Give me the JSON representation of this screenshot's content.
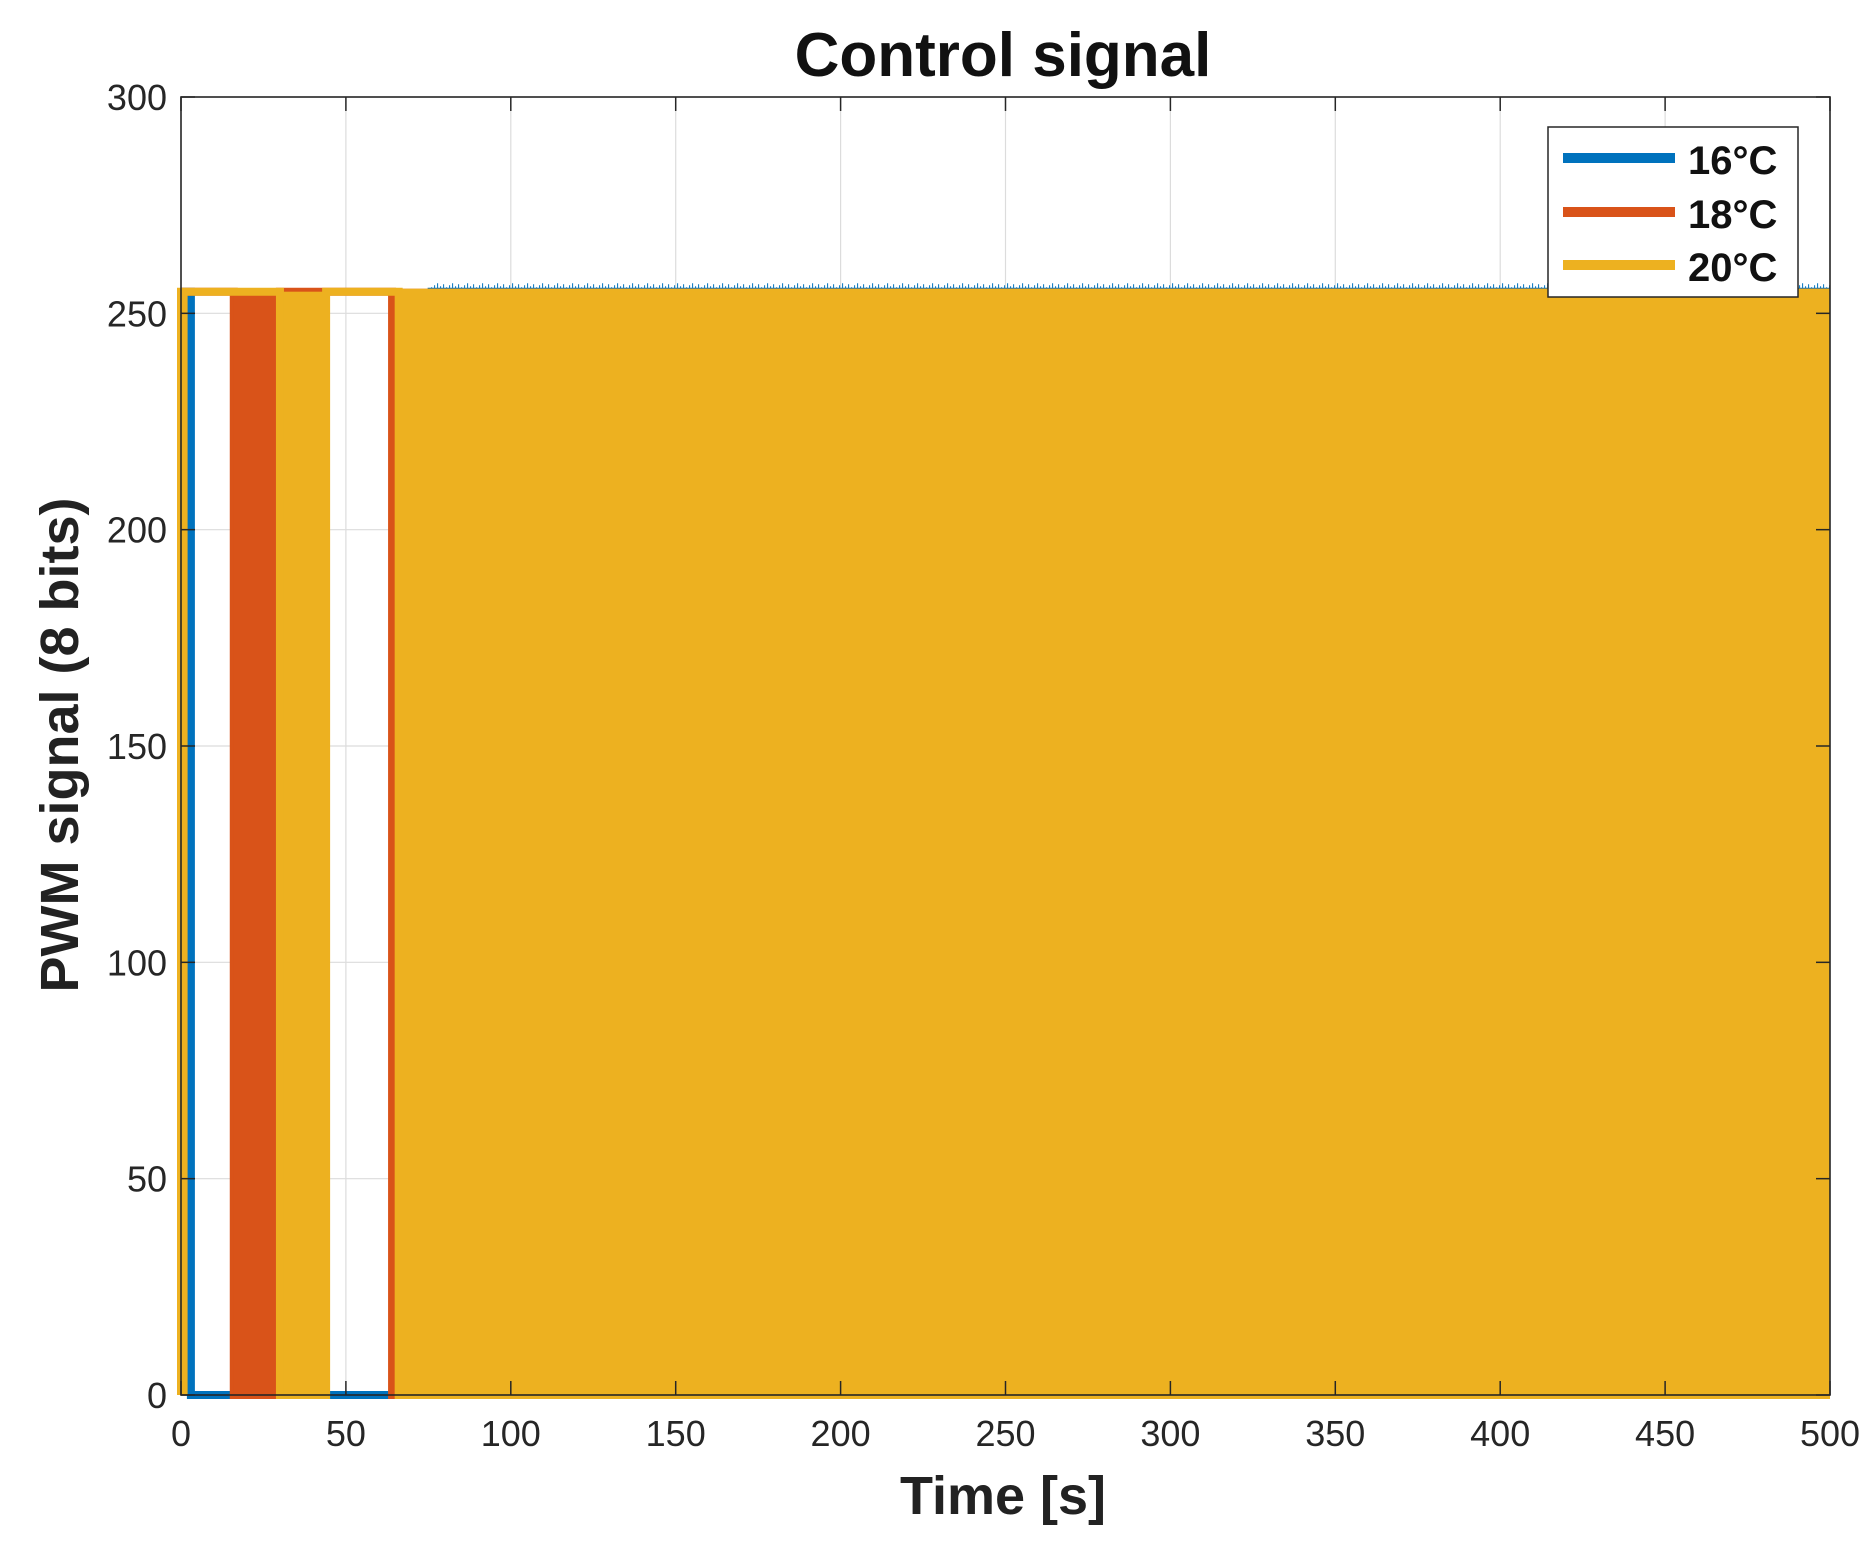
{
  "chart_data": {
    "type": "line",
    "title": "Control signal",
    "xlabel": "Time [s]",
    "ylabel": "PWM signal (8 bits)",
    "xlim": [
      0,
      500
    ],
    "ylim": [
      0,
      300
    ],
    "xticks": [
      0,
      50,
      100,
      150,
      200,
      250,
      300,
      350,
      400,
      450,
      500
    ],
    "yticks": [
      0,
      50,
      100,
      150,
      200,
      250,
      300
    ],
    "xtick_labels": [
      "0",
      "50",
      "100",
      "150",
      "200",
      "250",
      "300",
      "350",
      "400",
      "450",
      "500"
    ],
    "ytick_labels": [
      "0",
      "50",
      "100",
      "150",
      "200",
      "250",
      "300"
    ],
    "grid": true,
    "legend_position": "top-right",
    "series": [
      {
        "name": "16°C",
        "color": "#0072BD",
        "values_description_free": true,
        "x": [
          0,
          3,
          3,
          76,
          76,
          500
        ],
        "y": [
          255,
          255,
          0,
          0,
          255,
          255
        ],
        "dense_switching_from": 76,
        "dense_switching_to": 500,
        "levels": [
          0,
          255
        ]
      },
      {
        "name": "18°C",
        "color": "#D95319",
        "x": [
          0,
          16,
          16,
          30,
          30,
          64,
          64,
          500
        ],
        "y": [
          255,
          255,
          0,
          0,
          255,
          255,
          0,
          0
        ],
        "dense_switching_blocks": [
          [
            16,
            30
          ],
          [
            63,
            66
          ]
        ],
        "dense_switching_from": 66,
        "dense_switching_to": 500,
        "levels": [
          0,
          255
        ]
      },
      {
        "name": "20°C",
        "color": "#EDB120",
        "x": [
          0,
          0,
          30,
          30,
          44,
          44,
          66,
          66,
          500
        ],
        "y": [
          0,
          255,
          255,
          0,
          0,
          255,
          255,
          0,
          0
        ],
        "dense_switching_blocks": [
          [
            0,
            2
          ],
          [
            31,
            44
          ]
        ],
        "dense_switching_from": 66,
        "dense_switching_to": 500,
        "levels": [
          0,
          255
        ]
      }
    ]
  }
}
